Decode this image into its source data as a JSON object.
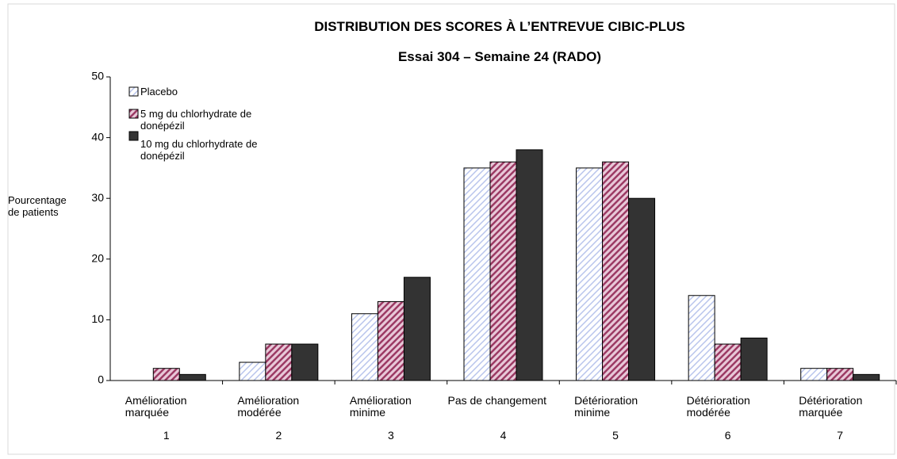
{
  "chart_data": {
    "type": "bar",
    "title": "DISTRIBUTION DES SCORES À L’ENTREVUE CIBIC-PLUS",
    "subtitle": "Essai 304 – Semaine 24 (RADO)",
    "y_label": "Pourcentage de patients",
    "categories": [
      "Amélioration marquée",
      "Amélioration modérée",
      "Amélioration minime",
      "Pas de changement",
      "Détérioration minime",
      "Détérioration modérée",
      "Détérioration marquée"
    ],
    "category_codes": [
      1,
      2,
      3,
      4,
      5,
      6,
      7
    ],
    "series": [
      {
        "name": "Placebo",
        "color": "#b8c4ec",
        "values": [
          0,
          3,
          11,
          35,
          35,
          14,
          2
        ]
      },
      {
        "name": "5 mg du chlorhydrate de donépézil",
        "color": "#9c3a64",
        "values": [
          2,
          6,
          13,
          36,
          36,
          6,
          2
        ]
      },
      {
        "name": "10 mg du chlorhydrate de donépézil",
        "color": "#333333",
        "values": [
          1,
          6,
          17,
          38,
          30,
          7,
          1
        ]
      }
    ],
    "ylim": [
      0,
      50
    ],
    "yticks": [
      0,
      10,
      20,
      30,
      40,
      50
    ],
    "grid": false,
    "legend": "top-left"
  }
}
